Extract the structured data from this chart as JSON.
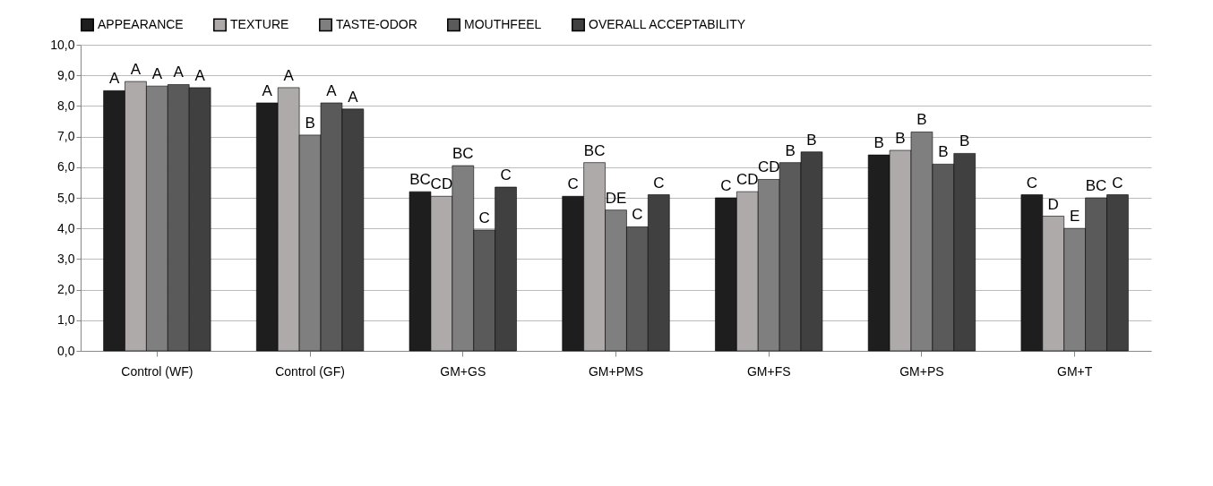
{
  "chart_data": {
    "type": "bar",
    "categories": [
      "Control (WF)",
      "Control (GF)",
      "GM+GS",
      "GM+PMS",
      "GM+FS",
      "GM+PS",
      "GM+T"
    ],
    "series": [
      {
        "name": "APPEARANCE",
        "color": "#1e1e1e",
        "values": [
          8.5,
          8.1,
          5.2,
          5.05,
          5.0,
          6.4,
          5.1
        ],
        "value_labels": [
          "A",
          "A",
          "BC",
          "C",
          "C",
          "B",
          "C"
        ]
      },
      {
        "name": "TEXTURE",
        "color": "#aeaaaa",
        "values": [
          8.8,
          8.6,
          5.05,
          6.15,
          5.2,
          6.55,
          4.4
        ],
        "value_labels": [
          "A",
          "A",
          "CD",
          "BC",
          "CD",
          "B",
          "D"
        ]
      },
      {
        "name": "TASTE-ODOR",
        "color": "#7f7f7f",
        "values": [
          8.65,
          7.05,
          6.05,
          4.6,
          5.6,
          7.15,
          4.0
        ],
        "value_labels": [
          "A",
          "B",
          "BC",
          "DE",
          "CD",
          "B",
          "E"
        ]
      },
      {
        "name": "MOUTHFEEL",
        "color": "#5a5a5a",
        "values": [
          8.7,
          8.1,
          3.95,
          4.05,
          6.15,
          6.1,
          5.0
        ],
        "value_labels": [
          "A",
          "A",
          "C",
          "C",
          "B",
          "B",
          "BC"
        ]
      },
      {
        "name": "OVERALL ACCEPTABILITY",
        "color": "#404040",
        "values": [
          8.6,
          7.9,
          5.35,
          5.1,
          6.5,
          6.45,
          5.1
        ],
        "value_labels": [
          "A",
          "A",
          "C",
          "C",
          "B",
          "B",
          "C"
        ]
      }
    ],
    "ylim": [
      0,
      10
    ],
    "yticks": [
      {
        "value": 0,
        "label": "0,0"
      },
      {
        "value": 1,
        "label": "1,0"
      },
      {
        "value": 2,
        "label": "2,0"
      },
      {
        "value": 3,
        "label": "3,0"
      },
      {
        "value": 4,
        "label": "4,0"
      },
      {
        "value": 5,
        "label": "5,0"
      },
      {
        "value": 6,
        "label": "6,0"
      },
      {
        "value": 7,
        "label": "7,0"
      },
      {
        "value": 8,
        "label": "8,0"
      },
      {
        "value": 9,
        "label": "9,0"
      },
      {
        "value": 10,
        "label": "10,0"
      }
    ],
    "grid": "y",
    "legend": "top"
  }
}
